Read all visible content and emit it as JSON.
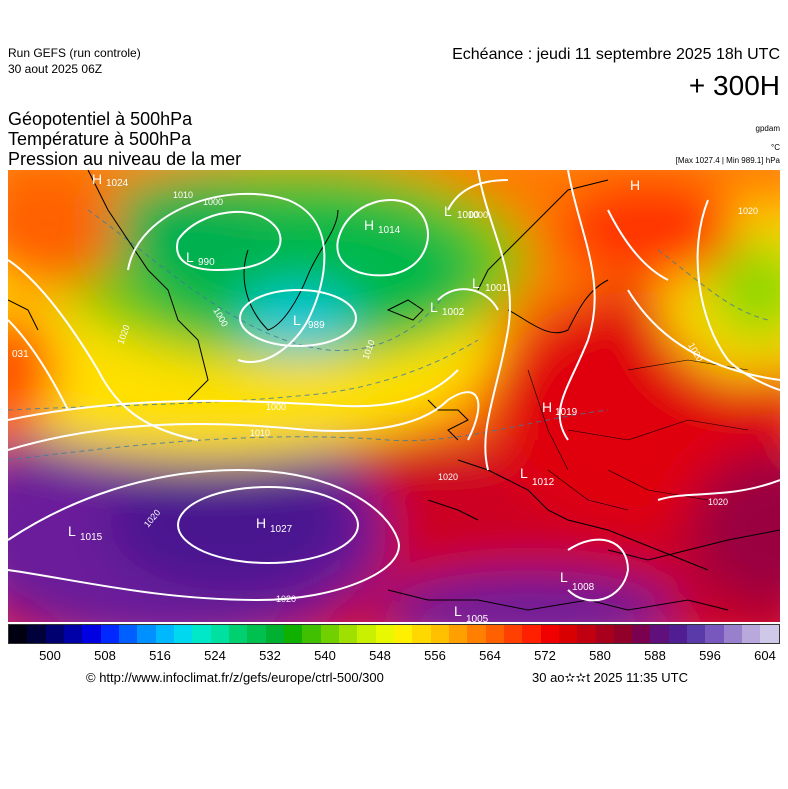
{
  "header": {
    "run_title": "Run GEFS (run controle)",
    "run_date": "30 aout 2025 06Z",
    "valid_time": "Echéance : jeudi 11 septembre 2025 18h UTC",
    "lead_time": "+ 300H"
  },
  "fields": {
    "geopotential": "Géopotentiel à 500hPa",
    "temperature": "Température à 500hPa",
    "pressure": "Pression au niveau de la mer",
    "unit_geopotential": "gpdam",
    "unit_temperature": "°C",
    "unit_pressure": "[Max 1027.4 | Min 989.1] hPa"
  },
  "map": {
    "pressure_centers": [
      {
        "type": "H",
        "value": "1024"
      },
      {
        "type": "L",
        "value": "990"
      },
      {
        "type": "L",
        "value": "989"
      },
      {
        "type": "H",
        "value": "1014"
      },
      {
        "type": "L",
        "value": "1000"
      },
      {
        "type": "L",
        "value": "1001"
      },
      {
        "type": "L",
        "value": "1002"
      },
      {
        "type": "H",
        "value": "1019"
      },
      {
        "type": "L",
        "value": "1012"
      },
      {
        "type": "H",
        "value": "1027"
      },
      {
        "type": "L",
        "value": "1015"
      },
      {
        "type": "L",
        "value": "1008"
      },
      {
        "type": "L",
        "value": "1005"
      },
      {
        "type": "H",
        "value": ""
      },
      {
        "type": "",
        "value": "031"
      }
    ],
    "isobar_labels": [
      "1010",
      "1000",
      "1000",
      "1000",
      "1020",
      "1000",
      "1010",
      "1020",
      "1020",
      "1020",
      "1020",
      "1010",
      "1020",
      "1020"
    ],
    "colors": {
      "cold_core": "#00c8d8",
      "warm_core": "#d80010",
      "subtropical": "#5a1a9a",
      "isobar": "#ffffff",
      "coast": "#000000"
    }
  },
  "colorbar": {
    "tick_labels": [
      "500",
      "508",
      "516",
      "524",
      "532",
      "540",
      "548",
      "556",
      "564",
      "572",
      "580",
      "588",
      "596",
      "604"
    ],
    "colors": [
      "#000010",
      "#00003a",
      "#000070",
      "#0000a8",
      "#0000e0",
      "#0028ff",
      "#0060ff",
      "#0090ff",
      "#00b8ff",
      "#00d8f0",
      "#00e8c8",
      "#00e0a0",
      "#00d070",
      "#00c050",
      "#00b030",
      "#10b000",
      "#40c000",
      "#70d000",
      "#a0e000",
      "#c8f000",
      "#e8f800",
      "#fff000",
      "#ffd800",
      "#ffc000",
      "#ffa000",
      "#ff8000",
      "#ff6000",
      "#ff4000",
      "#ff2000",
      "#f00000",
      "#d80000",
      "#c00010",
      "#a8001c",
      "#900028",
      "#7a0050",
      "#60107a",
      "#501e90",
      "#5a3aa8",
      "#7858bc",
      "#9880cc",
      "#b8a8dc",
      "#d0c8e8"
    ]
  },
  "footer": {
    "credit": "© http://www.infoclimat.fr/z/gefs/europe/ctrl-500/300",
    "generated": "30 ao✫✫t 2025 11:35 UTC"
  }
}
